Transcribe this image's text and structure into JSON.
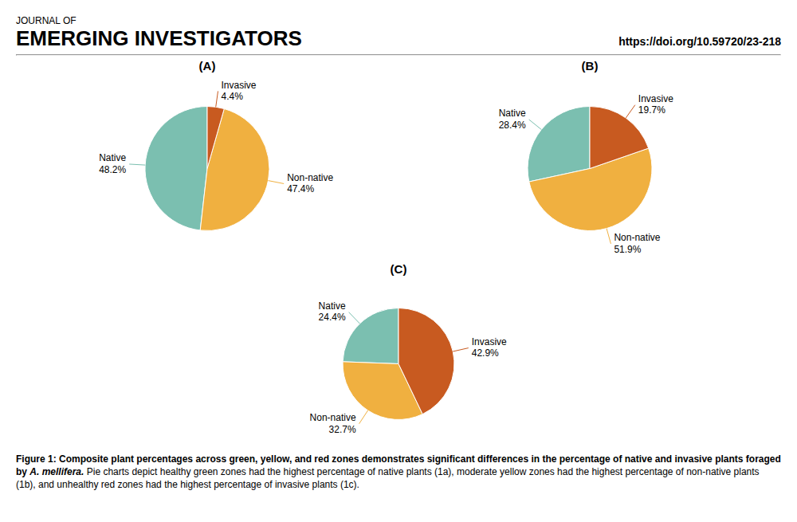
{
  "subtitle": "JOURNAL OF",
  "title": "EMERGING INVESTIGATORS",
  "annotations": [
    "https://doi.org/10.59720/23-218",
    "Figure 1: Composite plant percentages across green, yellow, and red zones demonstrates significant differences in the percentage of native and invasive plants foraged by ",
    "A. mellifera.",
    " Pie charts depict healthy green zones had the highest percentage of native plants (1a), moderate yellow zones had the highest percentage of non-native plants (1b), and unhealthy red zones had the highest percentage of invasive plants (1c)."
  ],
  "chart_data": [
    {
      "type": "pie",
      "title": "(A)",
      "categories": [
        "Native",
        "Non-native",
        "Invasive"
      ],
      "values": [
        48.2,
        47.4,
        4.4
      ],
      "value_labels": [
        "48.2%",
        "47.4%",
        "4.4%"
      ],
      "colors": [
        "#7BBFB0",
        "#F0B040",
        "#C85A20"
      ],
      "data_labels": true
    },
    {
      "type": "pie",
      "title": "(B)",
      "categories": [
        "Native",
        "Non-native",
        "Invasive"
      ],
      "values": [
        28.4,
        51.9,
        19.7
      ],
      "value_labels": [
        "28.4%",
        "51.9%",
        "19.7%"
      ],
      "colors": [
        "#7BBFB0",
        "#F0B040",
        "#C85A20"
      ],
      "data_labels": true
    },
    {
      "type": "pie",
      "title": "(C)",
      "categories": [
        "Native",
        "Non-native",
        "Invasive"
      ],
      "values": [
        24.4,
        32.7,
        42.9
      ],
      "value_labels": [
        "24.4%",
        "32.7%",
        "42.9%"
      ],
      "colors": [
        "#7BBFB0",
        "#F0B040",
        "#C85A20"
      ],
      "data_labels": true
    }
  ]
}
